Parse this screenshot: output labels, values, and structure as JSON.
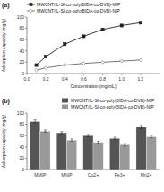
{
  "chart_data": [
    {
      "type": "line",
      "title": "(a)",
      "x_label": "Concentration (mg/mL)",
      "y_label": "Adsorption capacity (mg/g)",
      "x": [
        0.1,
        0.2,
        0.4,
        0.6,
        0.8,
        1.0,
        1.2
      ],
      "series": [
        {
          "name": "MWCNT/IL-SI-co-poly(BIDA-co-DVB)-MIP",
          "color": "#222222",
          "marker": "square",
          "values": [
            15,
            30,
            52,
            66,
            78,
            85,
            90
          ]
        },
        {
          "name": "MWCNT/IL-SI-co-poly(BIDA-co-DVB)-NIP",
          "color": "#666666",
          "marker": "diamond",
          "values": [
            6,
            10,
            15,
            18,
            20,
            22,
            24
          ]
        }
      ],
      "xlim": [
        0,
        1.4
      ],
      "ylim": [
        0,
        100
      ],
      "xticks": [
        {
          "value": 0,
          "label": "0.0"
        },
        0.2,
        0.4,
        0.6,
        0.8,
        {
          "value": 1,
          "label": "1.0"
        },
        1.2
      ],
      "yticks": [
        0,
        20,
        40,
        60,
        80,
        100
      ],
      "legend": "upper left"
    },
    {
      "type": "bar",
      "title": "(b)",
      "y_label": "Adsorption capacity (mg/g)",
      "categories": [
        "MMIP",
        "MNIP",
        "Cu2+",
        "Fe3+",
        "Mn2+"
      ],
      "series": [
        {
          "name": "MWCNT/IL-SI-co-poly(BIDA-co-DVB)-MIP",
          "color": "#555555",
          "values": [
            85,
            65,
            60,
            55,
            75
          ],
          "errors": [
            3,
            2,
            2,
            2,
            3
          ]
        },
        {
          "name": "MWCNT/IL-SI-co-poly(BIDA-co-DVB)-NIP",
          "color": "#999999",
          "values": [
            68,
            52,
            48,
            44,
            58
          ],
          "errors": [
            2,
            2,
            2,
            2,
            2
          ]
        }
      ],
      "ylim": [
        0,
        100
      ],
      "yticks": [
        0,
        20,
        40,
        60,
        80,
        100
      ],
      "legend": "upper right"
    }
  ]
}
